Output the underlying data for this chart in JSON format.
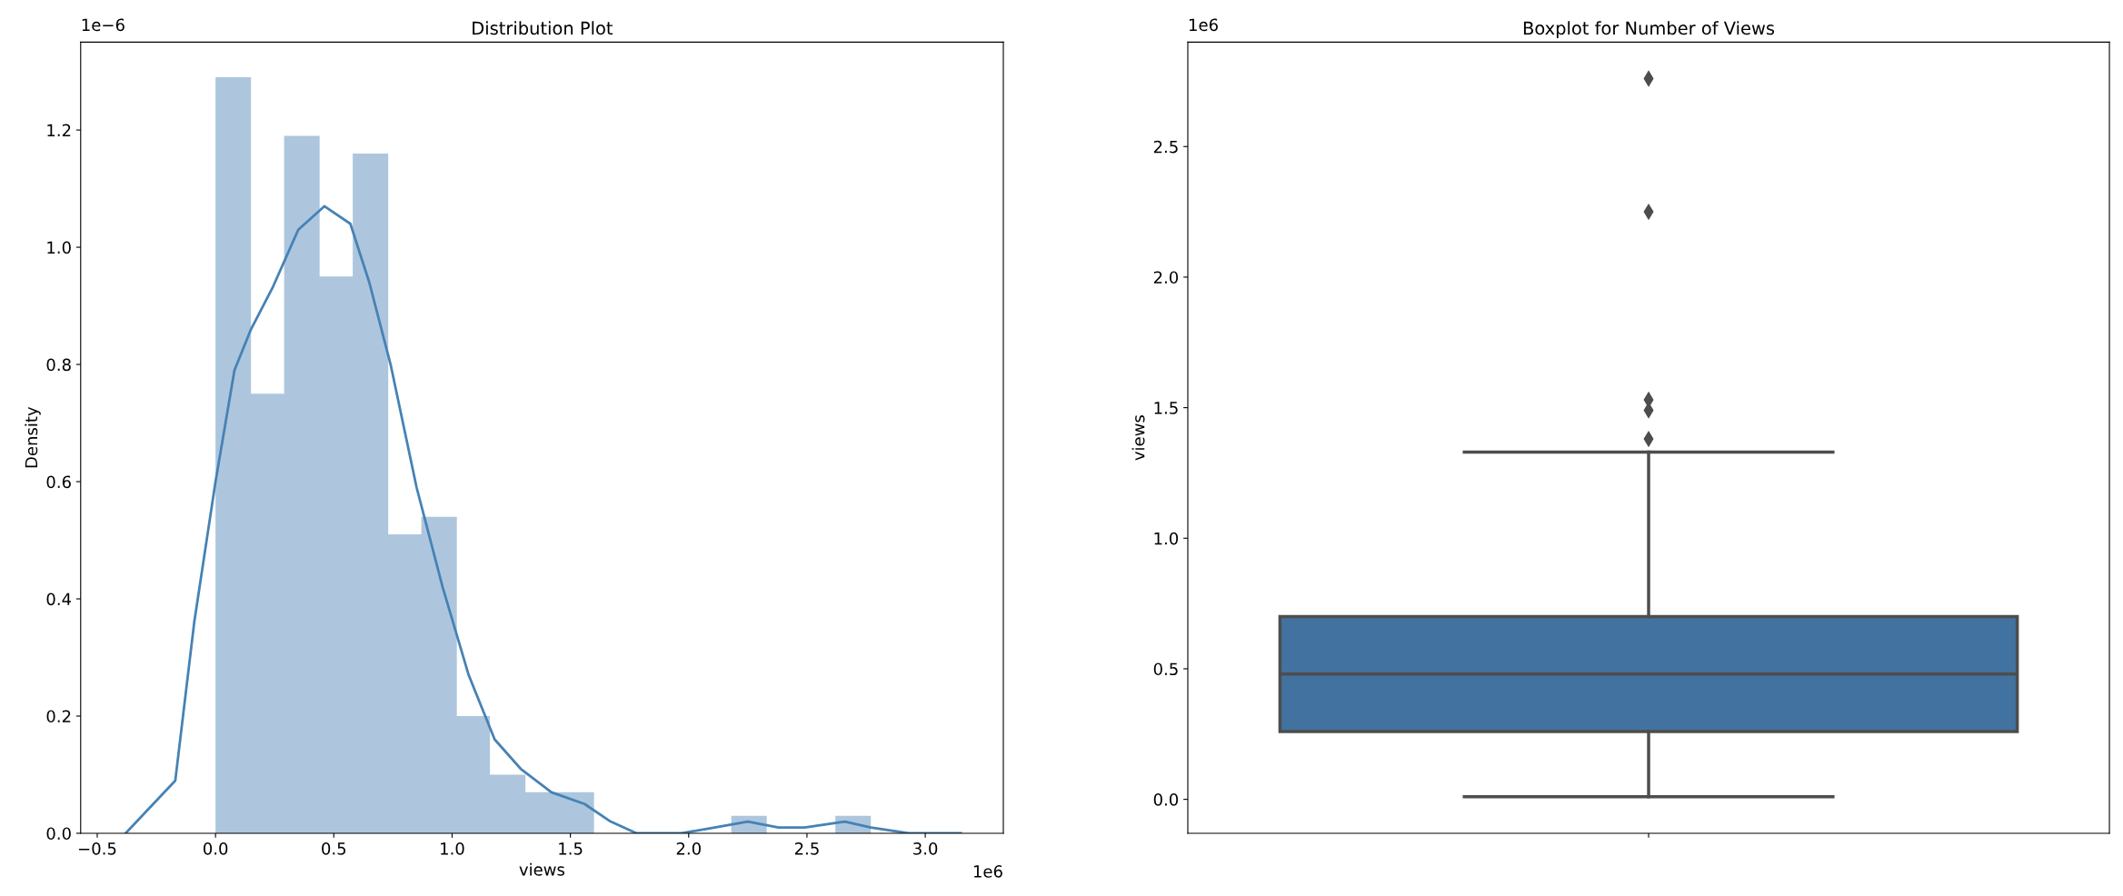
{
  "chart_data": [
    {
      "type": "histogram",
      "title": "Distribution Plot",
      "xlabel": "views",
      "ylabel": "Density",
      "bins": [
        0.0,
        0.15,
        0.29,
        0.44,
        0.58,
        0.73,
        0.87,
        1.02,
        1.16,
        1.31,
        1.46,
        1.6,
        1.75,
        1.89,
        2.04,
        2.18,
        2.33,
        2.48,
        2.62,
        2.77
      ],
      "values": [
        1.29,
        0.75,
        1.19,
        0.95,
        1.16,
        0.51,
        0.54,
        0.2,
        0.1,
        0.07,
        0.07,
        0,
        0,
        0,
        0,
        0.03,
        0,
        0,
        0.03
      ],
      "color": "#adc6de",
      "series": [
        {
          "type": "line",
          "color": "#4682b4",
          "x": [
            -0.38,
            -0.17,
            -0.09,
            0.0,
            0.08,
            0.15,
            0.24,
            0.35,
            0.46,
            0.57,
            0.65,
            0.74,
            0.85,
            0.96,
            1.07,
            1.18,
            1.29,
            1.42,
            1.56,
            1.67,
            1.78,
            1.97,
            2.11,
            2.25,
            2.38,
            2.49,
            2.66,
            2.77,
            2.93,
            3.15
          ],
          "values": [
            0.0,
            0.09,
            0.36,
            0.6,
            0.79,
            0.86,
            0.93,
            1.03,
            1.07,
            1.04,
            0.94,
            0.8,
            0.59,
            0.42,
            0.27,
            0.16,
            0.11,
            0.07,
            0.05,
            0.02,
            0.0,
            0.0,
            0.01,
            0.02,
            0.01,
            0.01,
            0.02,
            0.01,
            0.0,
            0.0
          ]
        }
      ],
      "xlim": [
        -0.57,
        3.33
      ],
      "ylim": [
        0,
        1.35
      ],
      "xticks": [
        {
          "value": -0.5,
          "label": "−0.5"
        },
        {
          "value": 0,
          "label": "0.0"
        },
        0.5,
        {
          "value": 1,
          "label": "1.0"
        },
        1.5,
        {
          "value": 2,
          "label": "2.0"
        },
        2.5,
        {
          "value": 3,
          "label": "3.0"
        }
      ],
      "yticks": [
        {
          "value": 0,
          "label": "0.0"
        },
        0.2,
        0.4,
        0.6,
        0.8,
        {
          "value": 1,
          "label": "1.0"
        },
        1.2
      ],
      "annotations": [
        "1e−6",
        "1e6"
      ]
    },
    {
      "type": "box",
      "title": "Boxplot for Number of Views",
      "ylabel": "views",
      "categories": [
        null
      ],
      "color": "#42729f",
      "boxes": [
        {
          "low": 0.01,
          "q1": 0.26,
          "median": 0.48,
          "q3": 0.7,
          "high": 1.33,
          "outliers": [
            1.38,
            1.49,
            1.53,
            2.25,
            2.76
          ]
        }
      ],
      "ylim": [
        -0.13,
        2.9
      ],
      "yticks": [
        {
          "value": 0,
          "label": "0.0"
        },
        0.5,
        {
          "value": 1,
          "label": "1.0"
        },
        1.5,
        {
          "value": 2,
          "label": "2.0"
        },
        2.5
      ],
      "annotations": [
        "1e6"
      ]
    }
  ]
}
